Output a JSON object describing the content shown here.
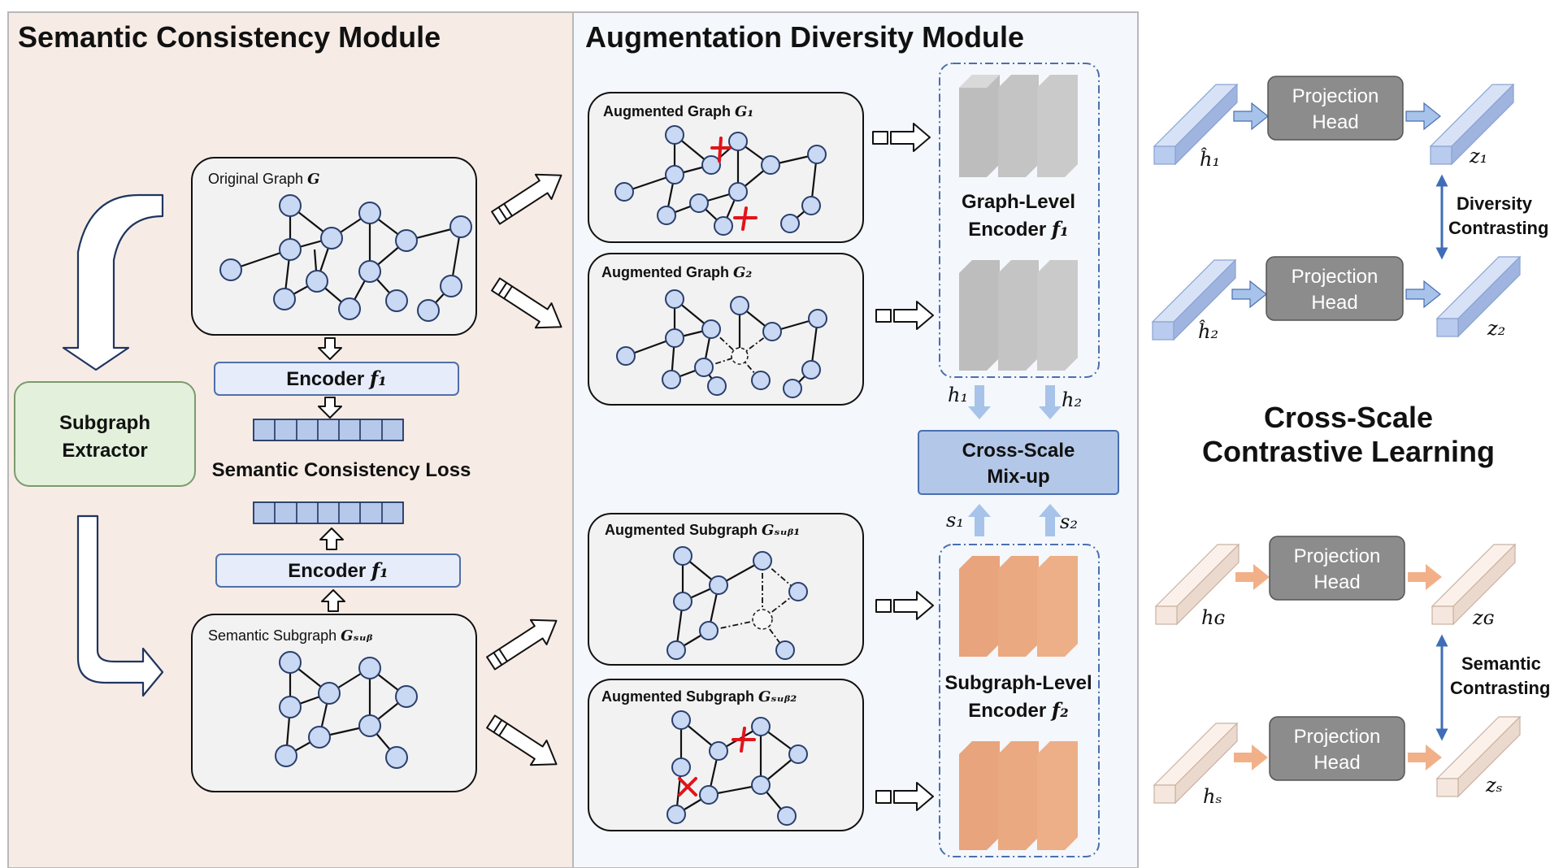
{
  "semantic_module": {
    "title": "Semantic Consistency Module",
    "original_graph_label": "Original Graph",
    "original_graph_symbol": "G",
    "subgraph_extractor": [
      "Subgraph",
      "Extractor"
    ],
    "encoder_top_label": "Encoder",
    "encoder_top_symbol": "f₁",
    "loss_label": "Semantic Consistency Loss",
    "encoder_bottom_label": "Encoder",
    "encoder_bottom_symbol": "f₁",
    "semantic_subgraph_label": "Semantic Subgraph",
    "semantic_subgraph_symbol": "Gₛᵤᵦ"
  },
  "augmentation_module": {
    "title": "Augmentation Diversity Module",
    "aug_graph_1": "Augmented Graph",
    "aug_graph_1_symbol": "G₁",
    "aug_graph_2": "Augmented Graph",
    "aug_graph_2_symbol": "G₂",
    "aug_subgraph_1": "Augmented Subgraph",
    "aug_subgraph_1_symbol": "Gₛᵤᵦ₁",
    "aug_subgraph_2": "Augmented Subgraph",
    "aug_subgraph_2_symbol": "Gₛᵤᵦ₂",
    "graph_encoder": [
      "Graph-Level",
      "Encoder"
    ],
    "graph_encoder_symbol": "f₁",
    "subgraph_encoder": [
      "Subgraph-Level",
      "Encoder"
    ],
    "subgraph_encoder_symbol": "f₂",
    "h1": "h₁",
    "h2": "h₂",
    "s1": "s₁",
    "s2": "s₂",
    "mixup": [
      "Cross-Scale",
      "Mix-up"
    ]
  },
  "contrastive": {
    "title": [
      "Cross-Scale",
      "Contrastive Learning"
    ],
    "projection_head": [
      "Projection",
      "Head"
    ],
    "h1_hat": "ĥ₁",
    "h2_hat": "ĥ₂",
    "z1": "z₁",
    "z2": "z₂",
    "hG": "hɢ",
    "hS": "hₛ",
    "zG": "zɢ",
    "zS": "zₛ",
    "diversity": [
      "Diversity",
      "Contrasting"
    ],
    "semantic": [
      "Semantic",
      "Contrasting"
    ]
  },
  "colors": {
    "semantic_panel_bg": "#f7ece5",
    "augmentation_panel_bg": "#f4f7fb",
    "node_fill": "#c9d8f3",
    "extractor_fill": "#e3f0dc",
    "encoder_box_fill": "#e6ecfa",
    "mixup_fill": "#b3c7e8",
    "projection_fill": "#8c8c8c",
    "blue_arrow": "#a7c3ea",
    "orange_arrow": "#f2b089",
    "cross": "#e0151b"
  }
}
